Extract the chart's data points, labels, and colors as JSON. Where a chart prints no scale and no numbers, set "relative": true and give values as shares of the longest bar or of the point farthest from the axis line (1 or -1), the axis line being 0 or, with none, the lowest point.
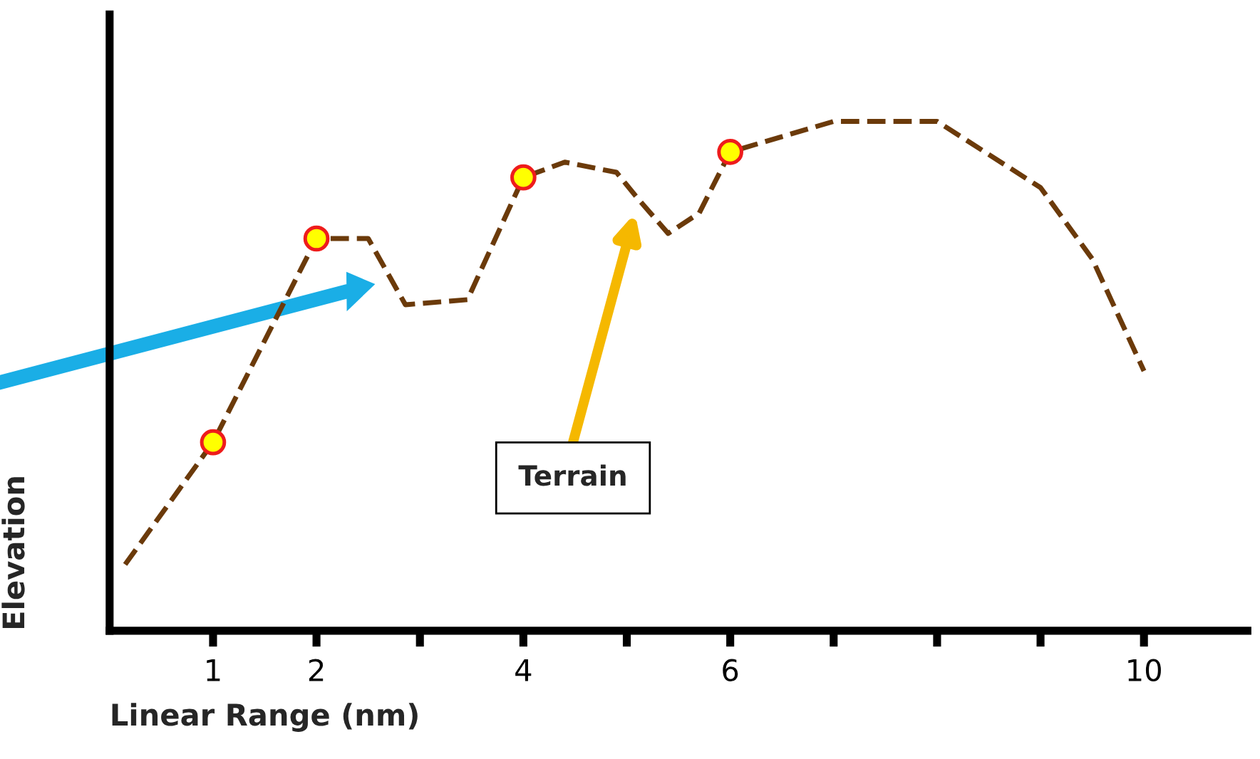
{
  "chart_data": {
    "type": "line",
    "relative": true,
    "xlabel": "Linear Range (nm)",
    "ylabel": "Elevation",
    "xlim": [
      0,
      11
    ],
    "xticks": [
      1,
      2,
      {
        "value": 3,
        "label": null
      },
      4,
      {
        "value": 5,
        "label": null
      },
      6,
      {
        "value": 7,
        "label": null
      },
      {
        "value": 8,
        "label": null
      },
      {
        "value": 9,
        "label": null
      },
      10
    ],
    "series": [
      {
        "color": "#6b3a0a",
        "line_style": "dashed",
        "marker": "none",
        "x": [
          0.15,
          1.0,
          2.0,
          2.5,
          2.86,
          3.46,
          4.0,
          4.4,
          4.9,
          5.1,
          5.4,
          5.7,
          6.0,
          7.0,
          8.0,
          9.0,
          9.5,
          10.0
        ],
        "values": [
          0.13,
          0.37,
          0.77,
          0.77,
          0.64,
          0.65,
          0.89,
          0.92,
          0.9,
          0.85,
          0.78,
          0.82,
          0.94,
          1.0,
          1.0,
          0.87,
          0.73,
          0.51
        ]
      },
      {
        "type": "scatter",
        "color": "#ffff00",
        "marker": "circle",
        "x": [
          1.0,
          2.0,
          4.0,
          6.0
        ],
        "values": [
          0.37,
          0.77,
          0.89,
          0.94
        ]
      }
    ],
    "annotations": [
      "Terrain"
    ],
    "grid": false,
    "legend": false
  }
}
